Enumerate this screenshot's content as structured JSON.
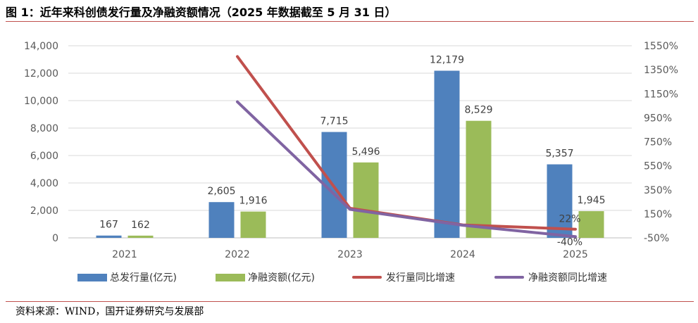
{
  "figure": {
    "title": "图 1：近年来科创债发行量及净融资额情况（2025 年数据截至 5 月 31 日）",
    "source": "资料来源：WIND，国开证券研究与发展部"
  },
  "colors": {
    "accent_rule": "#c0504d",
    "bar_issuance": "#4f81bd",
    "bar_net": "#9bbb59",
    "line_issuance_growth": "#c0504d",
    "line_net_growth": "#8064a2",
    "grid": "#d9d9d9"
  },
  "chart_data": {
    "type": "bar",
    "categories": [
      "2021",
      "2022",
      "2023",
      "2024",
      "2025"
    ],
    "series": [
      {
        "name": "总发行量(亿元)",
        "type": "bar",
        "axis": "left",
        "values": [
          167,
          2605,
          7715,
          12179,
          5357
        ],
        "labels": [
          "167",
          "2,605",
          "7,715",
          "12,179",
          "5,357"
        ]
      },
      {
        "name": "净融资额(亿元)",
        "type": "bar",
        "axis": "left",
        "values": [
          162,
          1916,
          5496,
          8529,
          1945
        ],
        "labels": [
          "162",
          "1,916",
          "5,496",
          "8,529",
          "1,945"
        ]
      },
      {
        "name": "发行量同比增速",
        "type": "line",
        "axis": "right",
        "unit": "%",
        "values": [
          null,
          1460,
          196,
          58,
          22
        ],
        "labels": [
          null,
          null,
          null,
          null,
          "22%"
        ]
      },
      {
        "name": "净融资额同比增速",
        "type": "line",
        "axis": "right",
        "unit": "%",
        "values": [
          null,
          1083,
          187,
          55,
          -40
        ],
        "labels": [
          null,
          null,
          null,
          null,
          "-40%"
        ]
      }
    ],
    "ylim": [
      0,
      14000
    ],
    "yticks": [
      "0",
      "2,000",
      "4,000",
      "6,000",
      "8,000",
      "10,000",
      "12,000",
      "14,000"
    ],
    "y2lim": [
      -50,
      1550
    ],
    "y2ticks": [
      "-50%",
      "150%",
      "350%",
      "550%",
      "750%",
      "950%",
      "1150%",
      "1350%",
      "1550%"
    ],
    "grid": true,
    "legend_position": "bottom"
  }
}
